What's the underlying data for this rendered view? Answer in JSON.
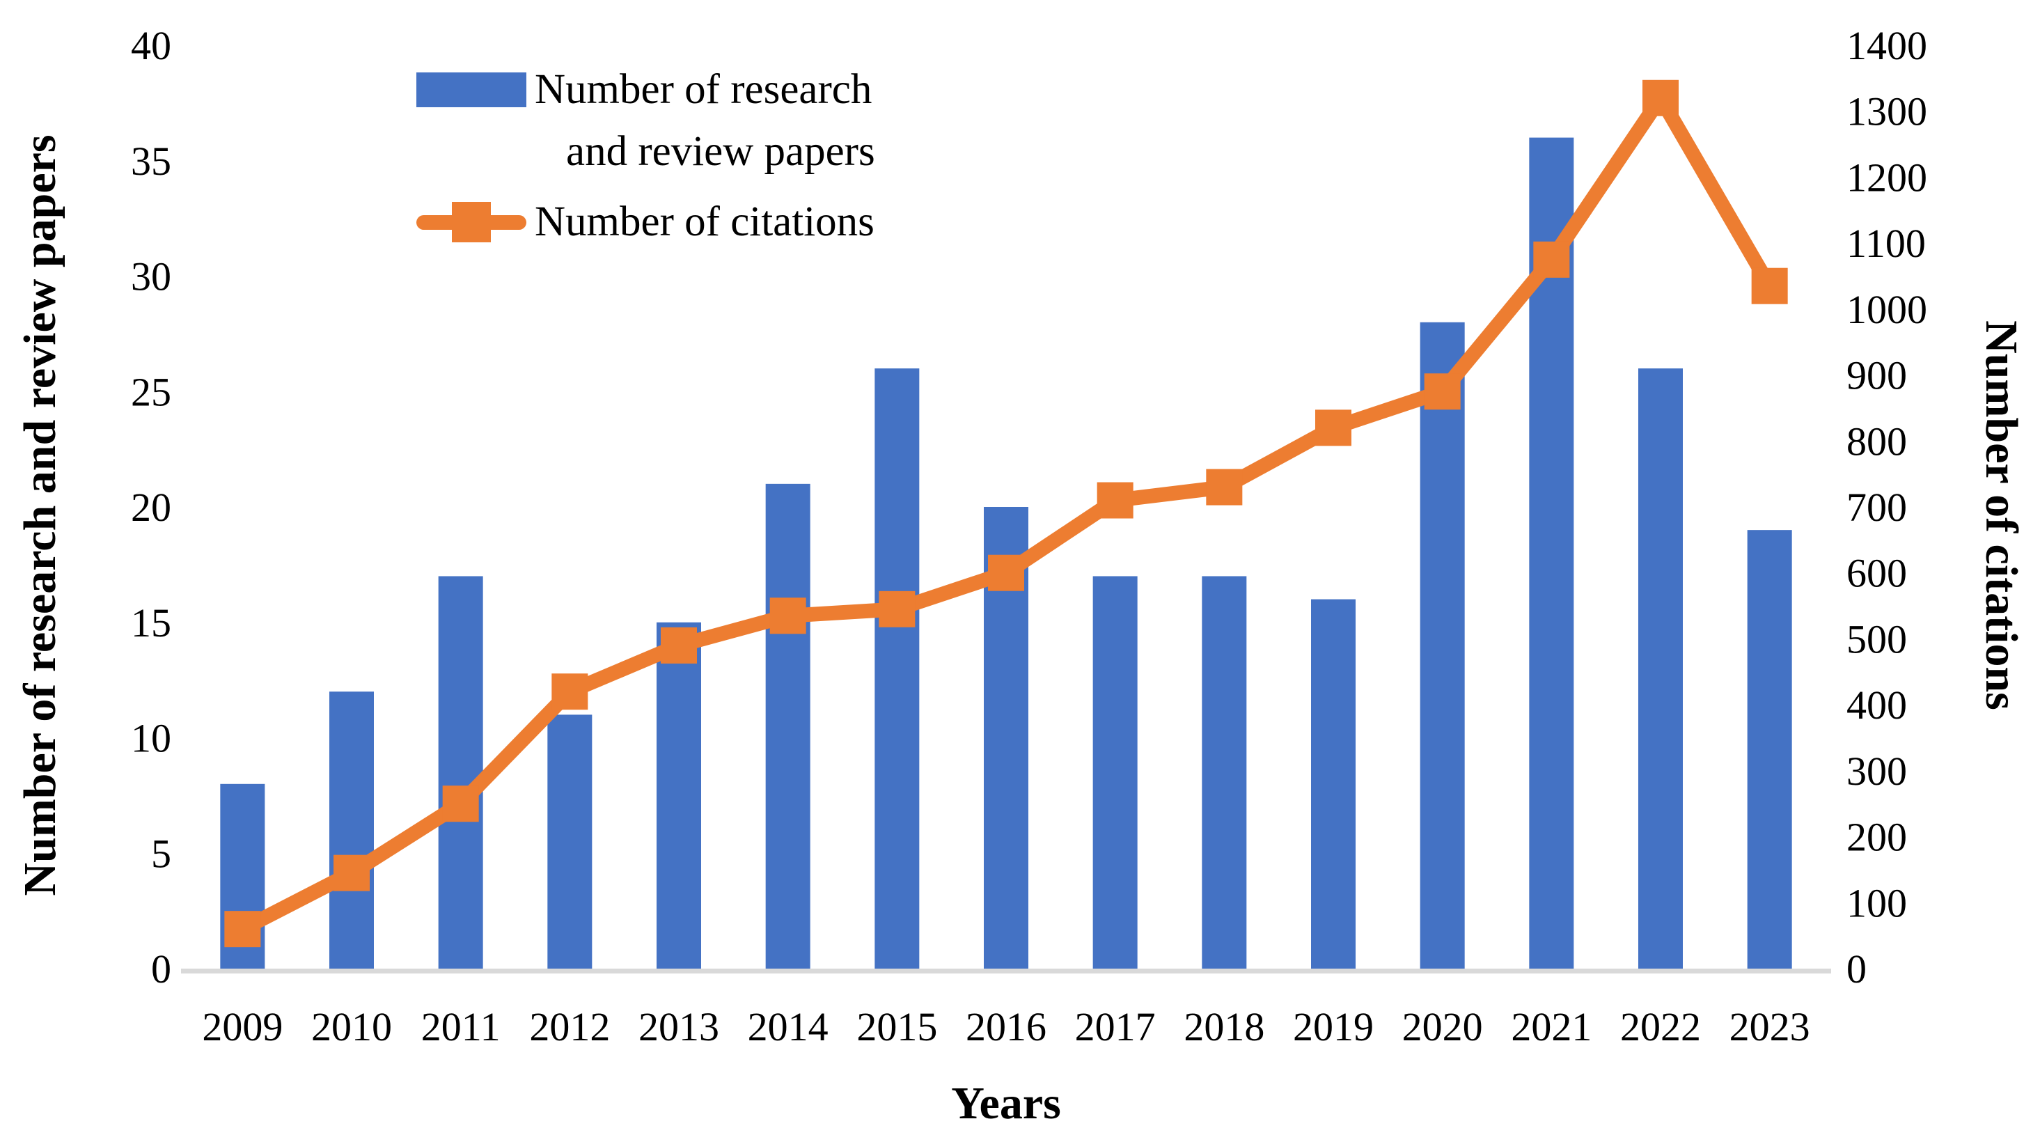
{
  "figure": {
    "x_axis_title": "Years",
    "y_axis_left_title": "Number of research and review papers",
    "y_axis_right_title": "Number of citations",
    "legend": {
      "items": [
        {
          "swatch": "bar-swatch",
          "lines": [
            "Number of research",
            "and review papers"
          ]
        },
        {
          "swatch": "line-marker-swatch",
          "lines": [
            "Number of citations"
          ]
        }
      ]
    },
    "colors": {
      "bar": "#4472C4",
      "line": "#ED7D31",
      "baseline": "#D9D9D9",
      "text": "#000000",
      "background": "#FFFFFF"
    }
  },
  "chart_data": {
    "type": "combo",
    "categories": [
      "2009",
      "2010",
      "2011",
      "2012",
      "2013",
      "2014",
      "2015",
      "2016",
      "2017",
      "2018",
      "2019",
      "2020",
      "2021",
      "2022",
      "2023"
    ],
    "series": [
      {
        "name": "Number of research and review papers",
        "type": "bar",
        "axis": "left",
        "color": "#4472C4",
        "values": [
          8,
          12,
          17,
          11,
          15,
          21,
          26,
          20,
          17,
          17,
          16,
          28,
          36,
          26,
          19
        ]
      },
      {
        "name": "Number of citations",
        "type": "line",
        "axis": "right",
        "color": "#ED7D31",
        "marker": "square",
        "values": [
          60,
          145,
          250,
          420,
          490,
          535,
          545,
          600,
          710,
          730,
          820,
          875,
          1075,
          1320,
          1035
        ]
      }
    ],
    "left_axis": {
      "min": 0,
      "max": 40,
      "step": 5,
      "ticks": [
        0,
        5,
        10,
        15,
        20,
        25,
        30,
        35,
        40
      ]
    },
    "right_axis": {
      "min": 0,
      "max": 1400,
      "step": 100,
      "ticks": [
        0,
        100,
        200,
        300,
        400,
        500,
        600,
        700,
        800,
        900,
        1000,
        1100,
        1200,
        1300,
        1400
      ]
    },
    "xlabel": "Years",
    "ylabel_left": "Number of research and review papers",
    "ylabel_right": "Number of citations",
    "grid": false,
    "legend_position": "inside-top-left"
  }
}
